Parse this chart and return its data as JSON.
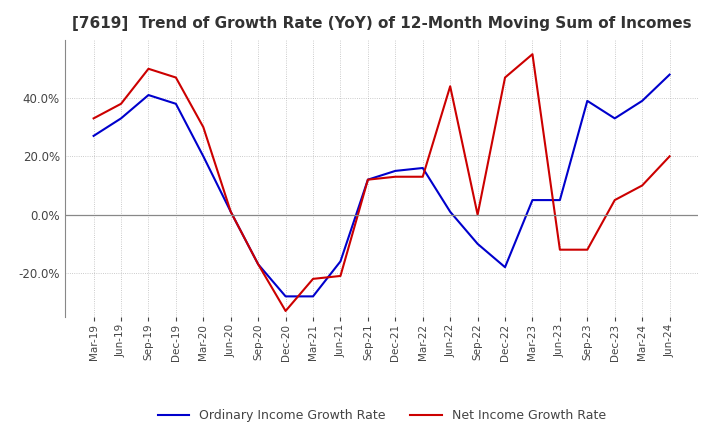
{
  "title": "[7619]  Trend of Growth Rate (YoY) of 12-Month Moving Sum of Incomes",
  "title_fontsize": 11,
  "background_color": "#ffffff",
  "grid_color": "#aaaaaa",
  "x_labels": [
    "Mar-19",
    "Jun-19",
    "Sep-19",
    "Dec-19",
    "Mar-20",
    "Jun-20",
    "Sep-20",
    "Dec-20",
    "Mar-21",
    "Jun-21",
    "Sep-21",
    "Dec-21",
    "Mar-22",
    "Jun-22",
    "Sep-22",
    "Dec-22",
    "Mar-23",
    "Jun-23",
    "Sep-23",
    "Dec-23",
    "Mar-24",
    "Jun-24"
  ],
  "ordinary_income": [
    27.0,
    33.0,
    41.0,
    38.0,
    20.0,
    1.0,
    -17.0,
    -28.0,
    -28.0,
    -16.0,
    12.0,
    15.0,
    16.0,
    1.0,
    -10.0,
    -18.0,
    5.0,
    5.0,
    39.0,
    33.0,
    39.0,
    48.0
  ],
  "net_income": [
    33.0,
    38.0,
    50.0,
    47.0,
    30.0,
    1.0,
    -17.0,
    -33.0,
    -22.0,
    -21.0,
    12.0,
    13.0,
    13.0,
    44.0,
    0.0,
    47.0,
    55.0,
    -12.0,
    -12.0,
    5.0,
    10.0,
    20.0
  ],
  "ylim": [
    -35,
    60
  ],
  "yticks": [
    -20.0,
    0.0,
    20.0,
    40.0
  ],
  "ordinary_color": "#0000cc",
  "net_color": "#cc0000",
  "legend_labels": [
    "Ordinary Income Growth Rate",
    "Net Income Growth Rate"
  ]
}
